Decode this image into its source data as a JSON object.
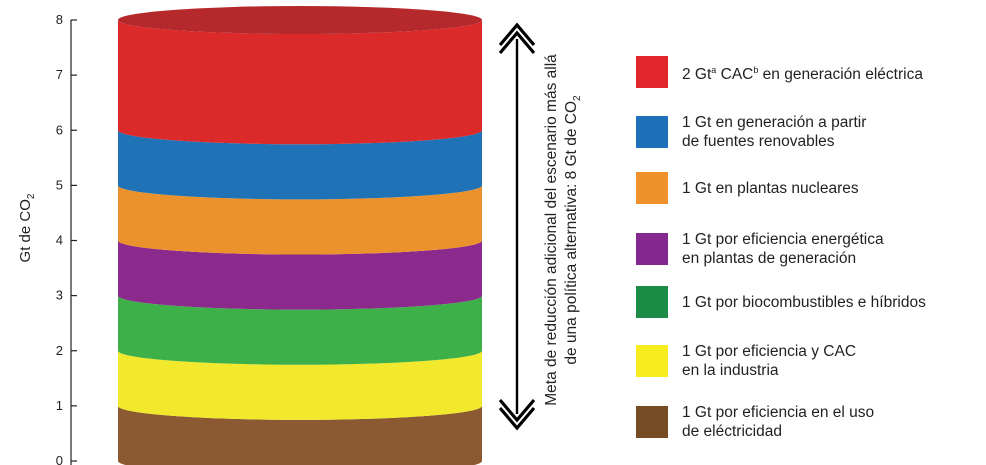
{
  "chart_data": {
    "type": "bar",
    "orientation": "stacked-column",
    "ylabel": "Gt de CO",
    "ylabel_subscript": "2",
    "ylim": [
      0,
      8
    ],
    "yticks": [
      "0",
      "1",
      "2",
      "3",
      "4",
      "5",
      "6",
      "7",
      "8"
    ],
    "annotation": {
      "line1": "Meta de reducción adicional del escenario más allá",
      "line2": "de una política alternativa: 8 Gt de CO",
      "subscript": "2"
    },
    "series": [
      {
        "label": "1 Gt por eficiencia en el uso\nde eléctricidad",
        "value": 1,
        "color": "#8b5a33",
        "legend_color": "#754c24"
      },
      {
        "label": "1 Gt por eficiencia y CAC\nen la industria",
        "value": 1,
        "color": "#f3e92c",
        "legend_color": "#f6ec1e"
      },
      {
        "label": "1 Gt por biocombustibles e híbridos",
        "value": 1,
        "color": "#3eb049",
        "legend_color": "#1a8c45"
      },
      {
        "label": "1 Gt por eficiencia energética\nen plantas de generación",
        "value": 1,
        "color": "#8b2a8c",
        "legend_color": "#84278e"
      },
      {
        "label": "1 Gt en plantas nucleares",
        "value": 1,
        "color": "#ec922d",
        "legend_color": "#f0922b"
      },
      {
        "label": "1 Gt en generación a partir\nde fuentes renovables",
        "value": 1,
        "color": "#1f72b6",
        "legend_color": "#1d70b7"
      },
      {
        "label_parts": [
          "2 Gt",
          "a",
          " CAC",
          "b",
          " en generación eléctrica"
        ],
        "value": 2,
        "color": "#dc2a2b",
        "top_color": "#b5292c",
        "legend_color": "#e0262a"
      }
    ]
  }
}
